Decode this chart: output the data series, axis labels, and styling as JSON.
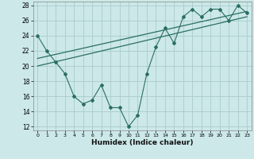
{
  "xlabel": "Humidex (Indice chaleur)",
  "bg_color": "#cce8e8",
  "grid_color": "#aacccc",
  "line_color": "#2a6e65",
  "xlim": [
    -0.5,
    23.5
  ],
  "ylim": [
    11.5,
    28.5
  ],
  "yticks": [
    12,
    14,
    16,
    18,
    20,
    22,
    24,
    26,
    28
  ],
  "xticks": [
    0,
    1,
    2,
    3,
    4,
    5,
    6,
    7,
    8,
    9,
    10,
    11,
    12,
    13,
    14,
    15,
    16,
    17,
    18,
    19,
    20,
    21,
    22,
    23
  ],
  "data_x": [
    0,
    1,
    2,
    3,
    4,
    5,
    6,
    7,
    8,
    9,
    10,
    11,
    12,
    13,
    14,
    15,
    16,
    17,
    18,
    19,
    20,
    21,
    22,
    23
  ],
  "data_y": [
    24,
    22,
    20.5,
    19,
    16,
    15,
    15.5,
    17.5,
    14.5,
    14.5,
    12,
    13.5,
    19,
    22.5,
    25,
    23,
    26.5,
    27.5,
    26.5,
    27.5,
    27.5,
    26,
    28,
    27
  ],
  "trend1_x": [
    0,
    23
  ],
  "trend1_y": [
    21.0,
    27.2
  ],
  "trend2_x": [
    0,
    23
  ],
  "trend2_y": [
    20.0,
    26.5
  ]
}
